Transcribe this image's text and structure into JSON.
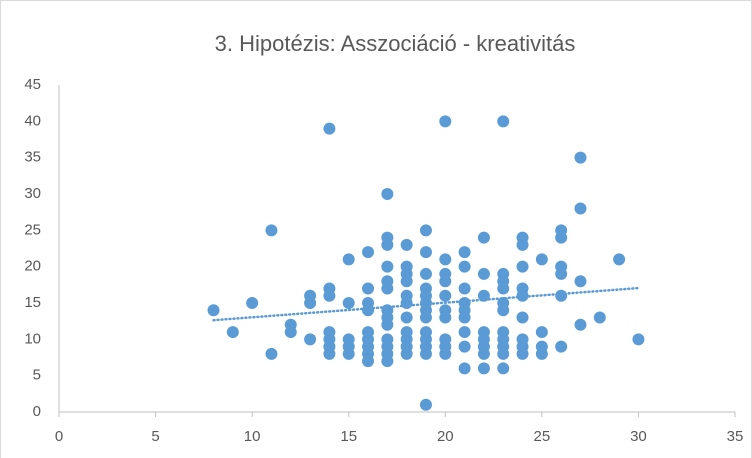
{
  "chart_data": {
    "type": "scatter",
    "title": "3. Hipotézis: Asszociáció - kreativitás",
    "series": [
      {
        "color": "#5b9bd5",
        "x": [
          8,
          9,
          10,
          11,
          11,
          12,
          12,
          13,
          13,
          13,
          14,
          14,
          14,
          14,
          14,
          14,
          14,
          15,
          15,
          15,
          15,
          15,
          16,
          16,
          16,
          16,
          16,
          16,
          16,
          16,
          16,
          17,
          17,
          17,
          17,
          17,
          17,
          17,
          17,
          17,
          17,
          17,
          17,
          17,
          18,
          18,
          18,
          18,
          18,
          18,
          18,
          18,
          18,
          18,
          18,
          19,
          19,
          19,
          19,
          19,
          19,
          19,
          19,
          19,
          19,
          19,
          19,
          19,
          20,
          20,
          20,
          20,
          20,
          20,
          20,
          20,
          20,
          20,
          21,
          21,
          21,
          21,
          21,
          21,
          21,
          21,
          21,
          22,
          22,
          22,
          22,
          22,
          22,
          22,
          22,
          23,
          23,
          23,
          23,
          23,
          23,
          23,
          23,
          23,
          23,
          23,
          24,
          24,
          24,
          24,
          24,
          24,
          24,
          24,
          24,
          25,
          25,
          25,
          25,
          26,
          26,
          26,
          26,
          26,
          26,
          27,
          27,
          27,
          27,
          28,
          29,
          30
        ],
        "y": [
          14,
          11,
          15,
          25,
          8,
          12,
          11,
          16,
          15,
          10,
          39,
          17,
          16,
          11,
          10,
          9,
          8,
          21,
          15,
          10,
          9,
          8,
          22,
          17,
          15,
          14,
          11,
          10,
          9,
          8,
          7,
          30,
          24,
          23,
          20,
          18,
          17,
          14,
          13,
          12,
          10,
          9,
          8,
          7,
          23,
          20,
          19,
          18,
          16,
          15,
          13,
          11,
          10,
          9,
          8,
          25,
          22,
          19,
          17,
          16,
          15,
          14,
          13,
          11,
          10,
          9,
          8,
          1,
          40,
          21,
          19,
          18,
          16,
          14,
          13,
          10,
          9,
          8,
          22,
          20,
          17,
          15,
          14,
          13,
          11,
          9,
          6,
          24,
          19,
          16,
          11,
          10,
          9,
          8,
          6,
          40,
          19,
          18,
          17,
          15,
          14,
          11,
          10,
          9,
          8,
          6,
          24,
          23,
          20,
          17,
          16,
          13,
          10,
          9,
          8,
          21,
          11,
          9,
          8,
          25,
          24,
          20,
          19,
          16,
          9,
          35,
          28,
          18,
          12,
          13,
          21,
          10
        ]
      }
    ],
    "trendline": "linear",
    "xlim": [
      0,
      35
    ],
    "xticks": [
      0,
      5,
      10,
      15,
      20,
      25,
      30,
      35
    ],
    "ylim": [
      0,
      45
    ],
    "yticks": [
      0,
      5,
      10,
      15,
      20,
      25,
      30,
      35,
      40,
      45
    ],
    "grid": false
  }
}
